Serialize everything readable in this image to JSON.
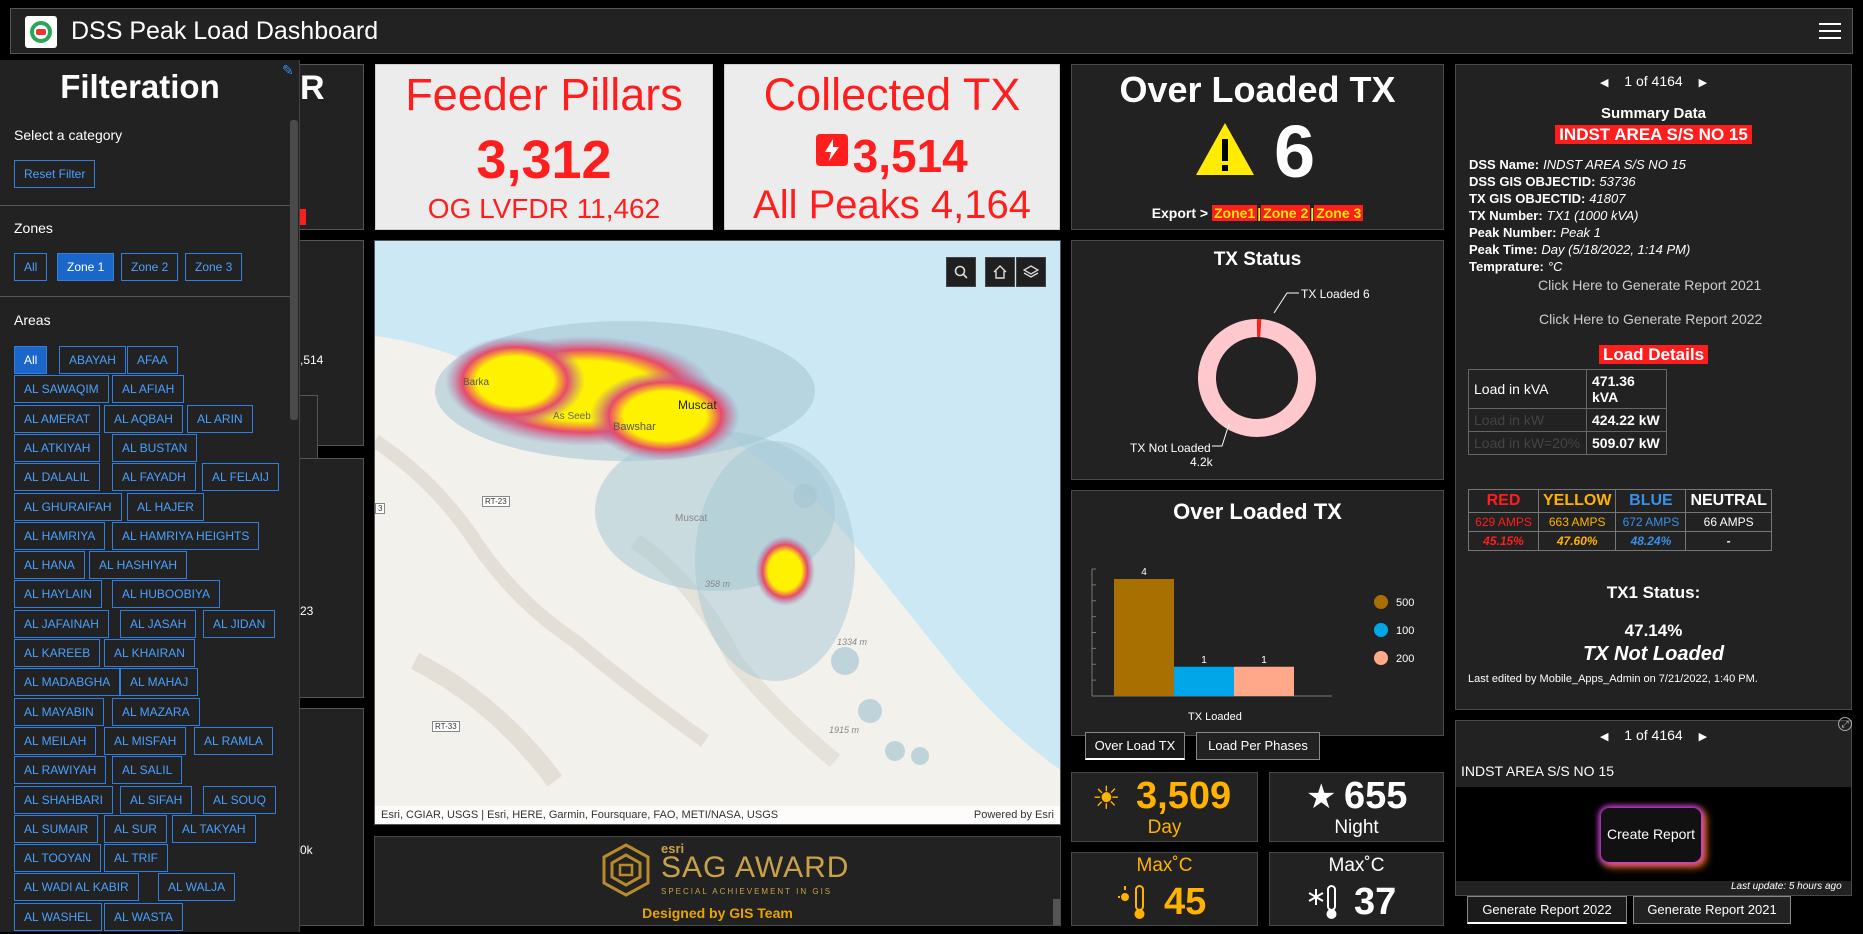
{
  "header": {
    "title": "DSS Peak Load Dashboard",
    "logo": "dss-logo",
    "menu_icon": "hamburger-menu-icon"
  },
  "filter": {
    "title": "Filteration",
    "category_label": "Select a category",
    "reset_label": "Reset Filter",
    "zones_label": "Zones",
    "zones": [
      "All",
      "Zone 1",
      "Zone 2",
      "Zone 3"
    ],
    "zones_selected": "Zone 1",
    "areas_label": "Areas",
    "areas_selected": "All",
    "areas": [
      [
        "All",
        "ABAYAH",
        "AFAA"
      ],
      [
        "AL SAWAQIM",
        "AL AFIAH"
      ],
      [
        "AL AMERAT",
        "AL AQBAH",
        "AL ARIN"
      ],
      [
        "AL ATKIYAH",
        "AL BUSTAN"
      ],
      [
        "AL DALALIL",
        "AL FAYADH",
        "AL FELAIJ"
      ],
      [
        "AL GHURAIFAH",
        "AL HAJER"
      ],
      [
        "AL HAMRIYA",
        "AL HAMRIYA HEIGHTS"
      ],
      [
        "AL HANA",
        "AL HASHIYAH"
      ],
      [
        "AL HAYLAIN",
        "AL HUBOOBIYA"
      ],
      [
        "AL JAFAINAH",
        "AL JASAH",
        "AL JIDAN"
      ],
      [
        "AL KAREEB",
        "AL KHAIRAN"
      ],
      [
        "AL MADABGHA",
        "AL MAHAJ"
      ],
      [
        "AL MAYABIN",
        "AL MAZARA"
      ],
      [
        "AL MEILAH",
        "AL MISFAH",
        "AL RAMLA"
      ],
      [
        "AL RAWIYAH",
        "AL SALIL"
      ],
      [
        "AL SHAHBARI",
        "AL SIFAH",
        "AL SOUQ"
      ],
      [
        "AL SUMAIR",
        "AL SUR",
        "AL TAKYAH"
      ],
      [
        "AL TOOYAN",
        "AL TRIF"
      ],
      [
        "AL WADI AL KABIR",
        "AL WALJA"
      ],
      [
        "AL WASHEL",
        "AL WASTA"
      ]
    ]
  },
  "left_panels": {
    "p1_text": "R",
    "p2_text": ",514",
    "p3_text": "23",
    "p4_text": "0k"
  },
  "feeder": {
    "title": "Feeder Pillars",
    "value": "3,312",
    "sub": "OG LVFDR 11,462"
  },
  "collected": {
    "title": "Collected TX",
    "icon": "power-alert-icon",
    "value": "3,514",
    "sub": "All Peaks 4,164"
  },
  "overloaded_top": {
    "title": "Over Loaded TX",
    "icon": "warning-icon",
    "value": "6",
    "export_label": "Export >",
    "zone1": "Zone1",
    "sep1": "|",
    "zone2": "Zone 2",
    "sep2": "|",
    "zone3": "Zone 3"
  },
  "tx_status": {
    "title": "TX Status",
    "loaded_label": "TX Loaded 6",
    "not_loaded_label": "TX Not Loaded",
    "not_loaded_value": "4.2k",
    "chart_data": {
      "type": "pie",
      "categories": [
        "TX Loaded",
        "TX Not Loaded"
      ],
      "values": [
        6,
        4158
      ]
    }
  },
  "overloaded_chart": {
    "title": "Over Loaded TX",
    "xlabel": "TX Loaded",
    "chart_data": {
      "type": "bar",
      "categories": [
        "500",
        "100",
        "200"
      ],
      "values": [
        4,
        1,
        1
      ],
      "colors": [
        "#a87000",
        "#00a6e8",
        "#ffa98a"
      ],
      "xlabel": "TX Loaded",
      "ylim": [
        0,
        4
      ]
    },
    "legend": [
      "500",
      "100",
      "200"
    ],
    "tabs": [
      "Over Load TX",
      "Load Per Phases"
    ]
  },
  "map": {
    "attribution": "Esri, CGIAR, USGS | Esri, HERE, Garmin, Foursquare, FAO, METI/NASA, USGS",
    "powered": "Powered by Esri",
    "labels": {
      "barka": "Barka",
      "as_seeb": "As Seeb",
      "bawshar": "Bawshar",
      "muscat": "Muscat",
      "muscat2": "Muscat",
      "rt23": "RT-23",
      "rt33": "RT-33",
      "r3": "3",
      "e358": "358 m",
      "e1334": "1334 m",
      "e1915": "1915 m"
    },
    "buttons": [
      "search-icon",
      "home-icon",
      "layers-icon"
    ]
  },
  "award": {
    "esri": "esri",
    "name": "SAG AWARD",
    "tagline": "SPECIAL ACHIEVEMENT IN GIS",
    "credit": "Designed by GIS Team"
  },
  "day_night": {
    "day_value": "3,509",
    "day_label": "Day",
    "night_value": "655",
    "night_label": "Night"
  },
  "temps": {
    "max_label_1": "Max˚C",
    "max_value_1": "45",
    "max_label_2": "Max˚C",
    "max_value_2": "37"
  },
  "summary": {
    "pager": "1 of 4164",
    "heading": "Summary Data",
    "station": "INDST AREA S/S NO 15",
    "rows": [
      {
        "k": "DSS Name:",
        "v": "INDST AREA S/S NO 15"
      },
      {
        "k": "DSS GIS OBJECTID:",
        "v": "53736"
      },
      {
        "k": "TX GIS OBJECTID:",
        "v": "41807"
      },
      {
        "k": "TX Number:",
        "v": "TX1 (1000 kVA)"
      },
      {
        "k": "Peak Number:",
        "v": "Peak 1"
      },
      {
        "k": "Peak Time:",
        "v": "Day (5/18/2022, 1:14 PM)"
      },
      {
        "k": "Temprature:",
        "v": "°C"
      }
    ],
    "report_2021": "Click Here to Generate Report  2021",
    "report_2022": "Click Here to Generate Report  2022",
    "load_heading": "Load Details",
    "load_rows": [
      {
        "k": "Load in kVA",
        "v": "471.36 kVA"
      },
      {
        "k": "Load in kW",
        "v": "424.22 kW"
      },
      {
        "k": "Load in kW=20%",
        "v": "509.07 kW"
      }
    ],
    "phases": {
      "headers": [
        "RED",
        "YELLOW",
        "BLUE",
        "NEUTRAL"
      ],
      "amps": [
        "629 AMPS",
        "663 AMPS",
        "672 AMPS",
        "66 AMPS"
      ],
      "pct": [
        "45.15%",
        "47.60%",
        "48.24%",
        "-"
      ]
    },
    "status_label": "TX1 Status:",
    "status_pct": "47.14%",
    "status_text": "TX Not Loaded",
    "last_edited": "Last edited by Mobile_Apps_Admin on 7/21/2022, 1:40 PM."
  },
  "report": {
    "pager": "1 of 4164",
    "station": "INDST AREA S/S NO 15",
    "button": "Create Report",
    "last_update": "Last update: 5 hours ago",
    "tabs": [
      "Generate Report 2022",
      "Generate Report 2021"
    ]
  }
}
